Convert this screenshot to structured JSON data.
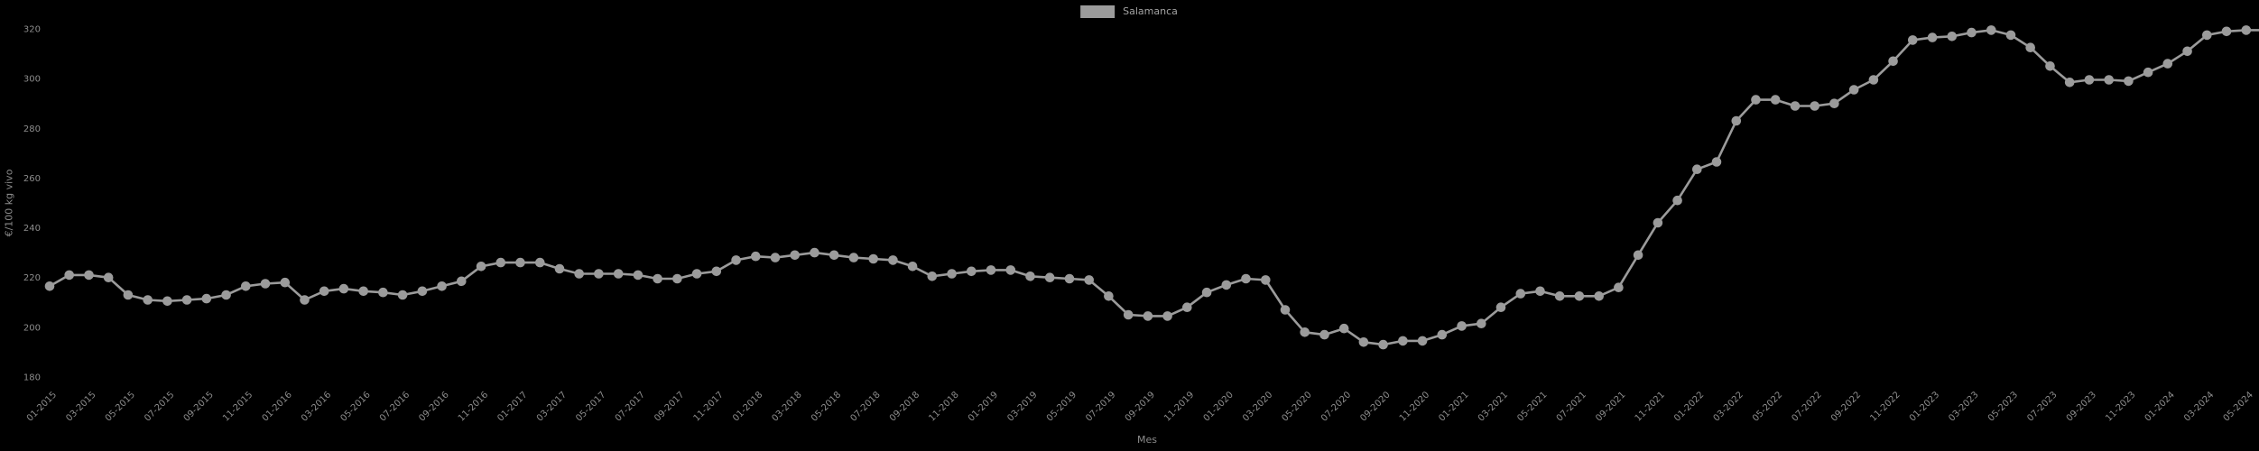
{
  "colors": {
    "background": "#000000",
    "series": "#9b9b9b",
    "tick_text": "#8c8c8c",
    "legend_text": "#a3a3a3"
  },
  "chart_data": {
    "type": "line",
    "title": "",
    "xlabel": "Mes",
    "ylabel": "€/100 kg vivo",
    "legend_position": "top-center",
    "grid": false,
    "marker": "circle",
    "ylim": [
      180,
      320
    ],
    "y_ticks": [
      180,
      200,
      220,
      240,
      260,
      280,
      300,
      320
    ],
    "x_tick_step": 2,
    "series": [
      {
        "name": "Salamanca",
        "color": "#9b9b9b",
        "x": [
          "01-2015",
          "02-2015",
          "03-2015",
          "04-2015",
          "05-2015",
          "06-2015",
          "07-2015",
          "08-2015",
          "09-2015",
          "10-2015",
          "11-2015",
          "12-2015",
          "01-2016",
          "02-2016",
          "03-2016",
          "04-2016",
          "05-2016",
          "06-2016",
          "07-2016",
          "08-2016",
          "09-2016",
          "10-2016",
          "11-2016",
          "12-2016",
          "01-2017",
          "02-2017",
          "03-2017",
          "04-2017",
          "05-2017",
          "06-2017",
          "07-2017",
          "08-2017",
          "09-2017",
          "10-2017",
          "11-2017",
          "12-2017",
          "01-2018",
          "02-2018",
          "03-2018",
          "04-2018",
          "05-2018",
          "06-2018",
          "07-2018",
          "08-2018",
          "09-2018",
          "10-2018",
          "11-2018",
          "12-2018",
          "01-2019",
          "02-2019",
          "03-2019",
          "04-2019",
          "05-2019",
          "06-2019",
          "07-2019",
          "08-2019",
          "09-2019",
          "10-2019",
          "11-2019",
          "12-2019",
          "01-2020",
          "02-2020",
          "03-2020",
          "04-2020",
          "05-2020",
          "06-2020",
          "07-2020",
          "08-2020",
          "09-2020",
          "10-2020",
          "11-2020",
          "12-2020",
          "01-2021",
          "02-2021",
          "03-2021",
          "04-2021",
          "05-2021",
          "06-2021",
          "07-2021",
          "08-2021",
          "09-2021",
          "10-2021",
          "11-2021",
          "12-2021",
          "01-2022",
          "02-2022",
          "03-2022",
          "04-2022",
          "05-2022",
          "06-2022",
          "07-2022",
          "08-2022",
          "09-2022",
          "10-2022",
          "11-2022",
          "12-2022",
          "01-2023",
          "02-2023",
          "03-2023",
          "04-2023",
          "05-2023",
          "06-2023",
          "07-2023",
          "08-2023",
          "09-2023",
          "10-2023",
          "11-2023",
          "12-2023",
          "01-2024",
          "02-2024",
          "03-2024",
          "04-2024",
          "05-2024",
          "06-2024"
        ],
        "values": [
          216.5,
          221,
          221,
          220,
          213,
          211,
          210.5,
          211,
          211.5,
          213,
          216.5,
          217.5,
          218,
          211,
          214.5,
          215.5,
          214.5,
          214,
          213,
          214.5,
          216.5,
          218.5,
          224.5,
          226,
          226,
          226,
          223.5,
          221.5,
          221.5,
          221.5,
          221,
          219.5,
          219.5,
          221.5,
          222.5,
          227,
          228.5,
          228,
          229,
          230,
          229,
          228,
          227.5,
          227,
          224.5,
          220.5,
          221.5,
          222.5,
          223,
          223,
          220.5,
          220,
          219.5,
          219,
          212.5,
          205,
          204.5,
          204.5,
          208,
          214,
          217,
          219.5,
          219,
          207,
          198,
          197,
          199.5,
          194,
          193,
          194.5,
          194.5,
          197,
          200.5,
          201.5,
          208,
          213.5,
          214.5,
          212.5,
          212.5,
          212.5,
          216,
          229,
          242,
          251,
          263.5,
          266.5,
          283,
          291.5,
          291.5,
          289,
          289,
          290,
          295.5,
          299.5,
          307,
          315.5,
          316.5,
          317,
          318.5,
          319.5,
          317.5,
          312.5,
          305,
          298.5,
          299.5,
          299.5,
          299,
          302.5,
          306,
          311,
          317.5,
          319,
          319.5,
          319.5
        ]
      }
    ]
  }
}
